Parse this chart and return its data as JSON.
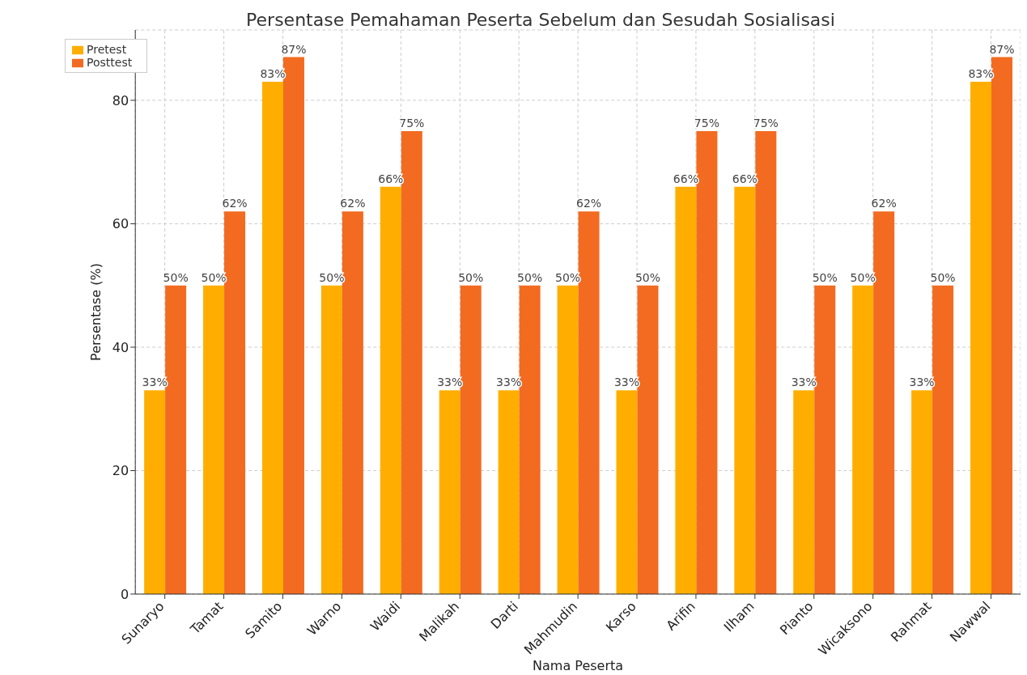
{
  "chart_data": {
    "type": "bar",
    "title": "Persentase Pemahaman Peserta Sebelum dan Sesudah Sosialisasi",
    "xlabel": "Nama Peserta",
    "ylabel": "Persentase (%)",
    "categories": [
      "Sunaryo",
      "Tamat",
      "Samito",
      "Warno",
      "Waidi",
      "Malikah",
      "Darti",
      "Mahmudin",
      "Karso",
      "Arifin",
      "Ilham",
      "Pianto",
      "Wicaksono",
      "Rahmat",
      "Nawwal"
    ],
    "series": [
      {
        "name": "Pretest",
        "color": "#ffae00",
        "values": [
          33,
          50,
          83,
          50,
          66,
          33,
          33,
          50,
          33,
          66,
          66,
          33,
          50,
          33,
          83
        ],
        "value_labels": [
          "33%",
          "50%",
          "83%",
          "50%",
          "66%",
          "33%",
          "33%",
          "50%",
          "33%",
          "66%",
          "66%",
          "33%",
          "50%",
          "33%",
          "83%"
        ]
      },
      {
        "name": "Posttest",
        "color": "#f26b21",
        "values": [
          50,
          62,
          87,
          62,
          75,
          50,
          50,
          62,
          50,
          75,
          75,
          50,
          62,
          50,
          87
        ],
        "value_labels": [
          "50%",
          "62%",
          "87%",
          "62%",
          "75%",
          "50%",
          "50%",
          "62%",
          "50%",
          "75%",
          "75%",
          "50%",
          "62%",
          "50%",
          "87%"
        ]
      }
    ],
    "ylim": [
      0,
      91.4
    ],
    "yticks": [
      0,
      20,
      40,
      60,
      80
    ],
    "grid": true,
    "legend": "top left"
  }
}
